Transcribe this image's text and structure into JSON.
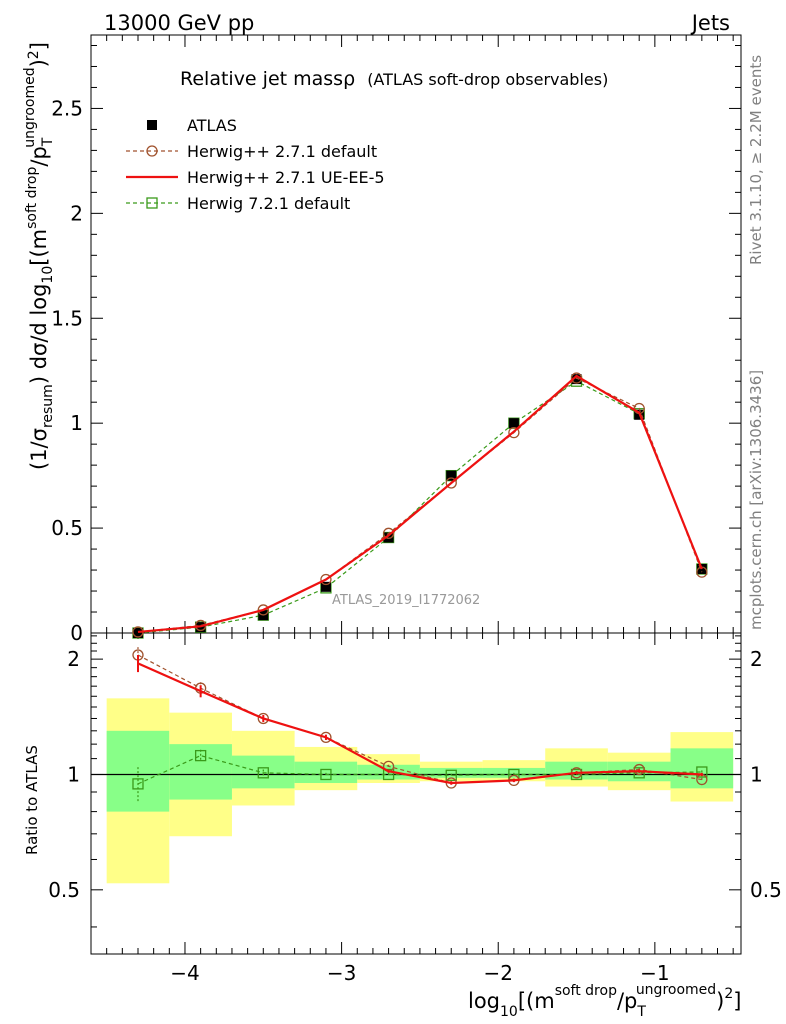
{
  "header": {
    "left": "13000 GeV pp",
    "right": "Jets"
  },
  "side": {
    "version": "Rivet 3.1.10, ≥ 2.2M events",
    "source": "mcplots.cern.ch [arXiv:1306.3436]"
  },
  "title": {
    "main": "Relative jet mass",
    "rho": "ρ",
    "sub": "(ATLAS soft-drop observables)"
  },
  "analysis_tag": "ATLAS_2019_I1772062",
  "axes": {
    "y_main_label": "(1/σresum) dσ/d log10[(m soft drop/pT ungroomed)2]",
    "y_ratio_label": "Ratio to ATLAS",
    "x_label": "log10[(m soft drop/pT ungroomed)2]"
  },
  "colors": {
    "data": "#000000",
    "herwigpp_default": "#a0522d",
    "herwigpp_ueee5": "#ee1111",
    "herwig7": "#3a9a1a",
    "band_inner": "#88ff88",
    "band_outer": "#ffff88"
  },
  "chart_data": [
    {
      "type": "scatter",
      "panel": "main",
      "xlim": [
        -4.6,
        -0.45
      ],
      "ylim": [
        0,
        2.85
      ],
      "yticks": [
        0.5,
        1,
        1.5,
        2,
        2.5
      ],
      "ytick_labels": [
        "0.5",
        "1",
        "1.5",
        "2",
        "2.5"
      ],
      "x": [
        -4.3,
        -3.9,
        -3.5,
        -3.1,
        -2.7,
        -2.3,
        -1.9,
        -1.5,
        -1.1,
        -0.7
      ],
      "series": [
        {
          "name": "ATLAS",
          "style": "points",
          "values": [
            0.0,
            0.028,
            0.085,
            0.22,
            0.455,
            0.75,
            1.0,
            1.21,
            1.04,
            0.305
          ]
        },
        {
          "name": "Herwig++ 2.7.1 default",
          "style": "dashed-circle",
          "values": [
            0.005,
            0.036,
            0.11,
            0.255,
            0.475,
            0.715,
            0.955,
            1.215,
            1.07,
            0.29
          ]
        },
        {
          "name": "Herwig++ 2.7.1 UE-EE-5",
          "style": "solid",
          "values": [
            0.005,
            0.032,
            0.11,
            0.255,
            0.465,
            0.715,
            0.96,
            1.225,
            1.05,
            0.305
          ]
        },
        {
          "name": "Herwig 7.2.1 default",
          "style": "dashed-square",
          "values": [
            0.0,
            0.028,
            0.085,
            0.215,
            0.455,
            0.75,
            1.0,
            1.2,
            1.045,
            0.305
          ]
        }
      ]
    },
    {
      "type": "line",
      "panel": "ratio",
      "xlim": [
        -4.6,
        -0.45
      ],
      "ylim": [
        0.34,
        2.34
      ],
      "yticks": [
        0.5,
        1,
        2
      ],
      "ytick_labels": [
        "0.5",
        "1",
        "2"
      ],
      "xticks": [
        -4,
        -3,
        -2,
        -1
      ],
      "xtick_labels": [
        "−4",
        "−3",
        "−2",
        "−1"
      ],
      "bins": [
        [
          -4.5,
          -4.1
        ],
        [
          -4.1,
          -3.7
        ],
        [
          -3.7,
          -3.3
        ],
        [
          -3.3,
          -2.9
        ],
        [
          -2.9,
          -2.5
        ],
        [
          -2.5,
          -2.1
        ],
        [
          -2.1,
          -1.7
        ],
        [
          -1.7,
          -1.3
        ],
        [
          -1.3,
          -0.9
        ],
        [
          -0.9,
          -0.5
        ]
      ],
      "band_outer": [
        [
          0.52,
          1.58
        ],
        [
          0.69,
          1.45
        ],
        [
          0.83,
          1.3
        ],
        [
          0.91,
          1.18
        ],
        [
          0.95,
          1.13
        ],
        [
          0.96,
          1.08
        ],
        [
          0.96,
          1.09
        ],
        [
          0.93,
          1.17
        ],
        [
          0.91,
          1.14
        ],
        [
          0.85,
          1.29
        ]
      ],
      "band_inner": [
        [
          0.8,
          1.3
        ],
        [
          0.86,
          1.2
        ],
        [
          0.92,
          1.12
        ],
        [
          0.95,
          1.08
        ],
        [
          0.97,
          1.06
        ],
        [
          0.98,
          1.04
        ],
        [
          0.98,
          1.04
        ],
        [
          0.97,
          1.08
        ],
        [
          0.96,
          1.08
        ],
        [
          0.92,
          1.17
        ]
      ],
      "x": [
        -4.3,
        -3.9,
        -3.5,
        -3.1,
        -2.7,
        -2.3,
        -1.9,
        -1.5,
        -1.1,
        -0.7
      ],
      "series": [
        {
          "name": "Herwig++ 2.7.1 default",
          "style": "dashed-circle",
          "values": [
            2.05,
            1.68,
            1.4,
            1.25,
            1.05,
            0.95,
            0.965,
            1.01,
            1.03,
            0.97
          ],
          "err": [
            0.1,
            0.06,
            0.03,
            0.02,
            0.01,
            0.01,
            0.01,
            0.01,
            0.01,
            0.01
          ]
        },
        {
          "name": "Herwig++ 2.7.1 UE-EE-5",
          "style": "solid",
          "values": [
            1.95,
            1.65,
            1.4,
            1.25,
            1.02,
            0.95,
            0.965,
            1.01,
            1.02,
            1.0
          ],
          "err": [
            0.1,
            0.06,
            0.03,
            0.02,
            0.01,
            0.01,
            0.01,
            0.01,
            0.01,
            0.01
          ]
        },
        {
          "name": "Herwig 7.2.1 default",
          "style": "dashed-square",
          "values": [
            0.945,
            1.12,
            1.01,
            1.0,
            1.0,
            0.995,
            1.0,
            1.0,
            1.01,
            1.015
          ],
          "err": [
            0.1,
            0.04,
            0.02,
            0.01,
            0.01,
            0.01,
            0.01,
            0.01,
            0.01,
            0.01
          ]
        }
      ]
    }
  ]
}
